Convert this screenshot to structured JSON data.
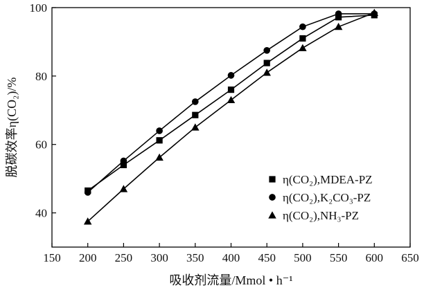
{
  "chart_data": {
    "type": "line",
    "xlabel": "吸收剂流量/Mmol • h⁻¹",
    "ylabel": "脱碳效率η(CO₂)/%",
    "xlim": [
      150,
      650
    ],
    "ylim": [
      30,
      100
    ],
    "xticks": [
      150,
      200,
      250,
      300,
      350,
      400,
      450,
      500,
      550,
      600,
      650
    ],
    "yticks": [
      40,
      60,
      80,
      100
    ],
    "grid": false,
    "legend_position": "bottom-right",
    "x": [
      200,
      250,
      300,
      350,
      400,
      450,
      500,
      550,
      600
    ],
    "series": [
      {
        "name": "η(CO₂),MDEA-PZ",
        "marker": "square",
        "values": [
          46.5,
          54,
          61.2,
          68.6,
          76,
          83.8,
          91,
          97.2,
          97.8
        ]
      },
      {
        "name": "η(CO₂),K₂CO₃-PZ",
        "marker": "circle",
        "values": [
          46,
          55.2,
          64,
          72.5,
          80.2,
          87.5,
          94.4,
          98.2,
          98.2
        ]
      },
      {
        "name": "η(CO₂),NH₃-PZ",
        "marker": "triangle",
        "values": [
          37.5,
          47,
          56.2,
          65,
          73,
          81,
          88.2,
          94.4,
          98.5
        ]
      }
    ],
    "colors": {
      "line": "#000000",
      "axis": "#000000"
    }
  }
}
